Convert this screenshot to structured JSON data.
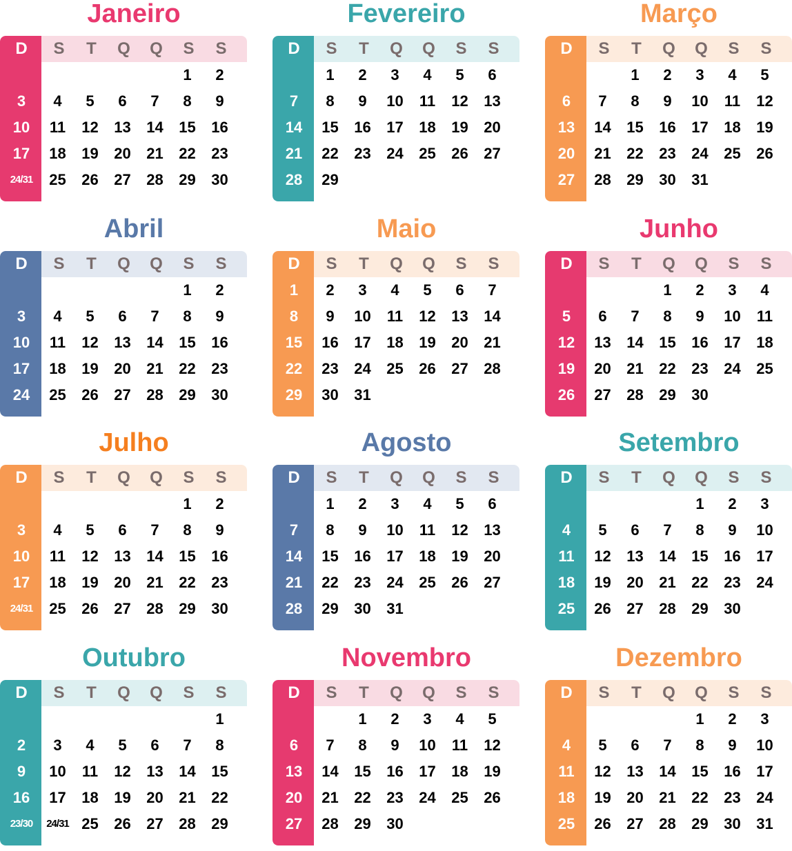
{
  "weekday_headers": [
    "D",
    "S",
    "T",
    "Q",
    "Q",
    "S",
    "S"
  ],
  "months": [
    {
      "name": "Janeiro",
      "theme": "pink",
      "weeks": [
        [
          "",
          "",
          "",
          "",
          "",
          "1",
          "2"
        ],
        [
          "3",
          "4",
          "5",
          "6",
          "7",
          "8",
          "9"
        ],
        [
          "10",
          "11",
          "12",
          "13",
          "14",
          "15",
          "16"
        ],
        [
          "17",
          "18",
          "19",
          "20",
          "21",
          "22",
          "23"
        ],
        [
          "24/31",
          "25",
          "26",
          "27",
          "28",
          "29",
          "30"
        ]
      ]
    },
    {
      "name": "Fevereiro",
      "theme": "teal",
      "weeks": [
        [
          "",
          "1",
          "2",
          "3",
          "4",
          "5",
          "6"
        ],
        [
          "7",
          "8",
          "9",
          "10",
          "11",
          "12",
          "13"
        ],
        [
          "14",
          "15",
          "16",
          "17",
          "18",
          "19",
          "20"
        ],
        [
          "21",
          "22",
          "23",
          "24",
          "25",
          "26",
          "27"
        ],
        [
          "28",
          "29",
          "",
          "",
          "",
          "",
          ""
        ]
      ]
    },
    {
      "name": "Março",
      "theme": "orange",
      "weeks": [
        [
          "",
          "",
          "1",
          "2",
          "3",
          "4",
          "5"
        ],
        [
          "6",
          "7",
          "8",
          "9",
          "10",
          "11",
          "12"
        ],
        [
          "13",
          "14",
          "15",
          "16",
          "17",
          "18",
          "19"
        ],
        [
          "20",
          "21",
          "22",
          "23",
          "24",
          "25",
          "26"
        ],
        [
          "27",
          "28",
          "29",
          "30",
          "31",
          "",
          ""
        ]
      ]
    },
    {
      "name": "Abril",
      "theme": "blue",
      "weeks": [
        [
          "",
          "",
          "",
          "",
          "",
          "1",
          "2"
        ],
        [
          "3",
          "4",
          "5",
          "6",
          "7",
          "8",
          "9"
        ],
        [
          "10",
          "11",
          "12",
          "13",
          "14",
          "15",
          "16"
        ],
        [
          "17",
          "18",
          "19",
          "20",
          "21",
          "22",
          "23"
        ],
        [
          "24",
          "25",
          "26",
          "27",
          "28",
          "29",
          "30"
        ]
      ]
    },
    {
      "name": "Maio",
      "theme": "orange",
      "weeks": [
        [
          "1",
          "2",
          "3",
          "4",
          "5",
          "6",
          "7"
        ],
        [
          "8",
          "9",
          "10",
          "11",
          "12",
          "13",
          "14"
        ],
        [
          "15",
          "16",
          "17",
          "18",
          "19",
          "20",
          "21"
        ],
        [
          "22",
          "23",
          "24",
          "25",
          "26",
          "27",
          "28"
        ],
        [
          "29",
          "30",
          "31",
          "",
          "",
          "",
          ""
        ]
      ]
    },
    {
      "name": "Junho",
      "theme": "pink",
      "weeks": [
        [
          "",
          "",
          "",
          "1",
          "2",
          "3",
          "4"
        ],
        [
          "5",
          "6",
          "7",
          "8",
          "9",
          "10",
          "11"
        ],
        [
          "12",
          "13",
          "14",
          "15",
          "16",
          "17",
          "18"
        ],
        [
          "19",
          "20",
          "21",
          "22",
          "23",
          "24",
          "25"
        ],
        [
          "26",
          "27",
          "28",
          "29",
          "30",
          "",
          ""
        ]
      ]
    },
    {
      "name": "Julho",
      "theme": "orange2",
      "weeks": [
        [
          "",
          "",
          "",
          "",
          "",
          "1",
          "2"
        ],
        [
          "3",
          "4",
          "5",
          "6",
          "7",
          "8",
          "9"
        ],
        [
          "10",
          "11",
          "12",
          "13",
          "14",
          "15",
          "16"
        ],
        [
          "17",
          "18",
          "19",
          "20",
          "21",
          "22",
          "23"
        ],
        [
          "24/31",
          "25",
          "26",
          "27",
          "28",
          "29",
          "30"
        ]
      ]
    },
    {
      "name": "Agosto",
      "theme": "blue",
      "weeks": [
        [
          "",
          "1",
          "2",
          "3",
          "4",
          "5",
          "6"
        ],
        [
          "7",
          "8",
          "9",
          "10",
          "11",
          "12",
          "13"
        ],
        [
          "14",
          "15",
          "16",
          "17",
          "18",
          "19",
          "20"
        ],
        [
          "21",
          "22",
          "23",
          "24",
          "25",
          "26",
          "27"
        ],
        [
          "28",
          "29",
          "30",
          "31",
          "",
          "",
          ""
        ]
      ]
    },
    {
      "name": "Setembro",
      "theme": "teal",
      "weeks": [
        [
          "",
          "",
          "",
          "",
          "1",
          "2",
          "3"
        ],
        [
          "4",
          "5",
          "6",
          "7",
          "8",
          "9",
          "10"
        ],
        [
          "11",
          "12",
          "13",
          "14",
          "15",
          "16",
          "17"
        ],
        [
          "18",
          "19",
          "20",
          "21",
          "22",
          "23",
          "24"
        ],
        [
          "25",
          "26",
          "27",
          "28",
          "29",
          "30",
          ""
        ]
      ]
    },
    {
      "name": "Outubro",
      "theme": "teal",
      "weeks": [
        [
          "",
          "",
          "",
          "",
          "",
          "",
          "1"
        ],
        [
          "2",
          "3",
          "4",
          "5",
          "6",
          "7",
          "8"
        ],
        [
          "9",
          "10",
          "11",
          "12",
          "13",
          "14",
          "15"
        ],
        [
          "16",
          "17",
          "18",
          "19",
          "20",
          "21",
          "22"
        ],
        [
          "23/30",
          "24/31",
          "25",
          "26",
          "27",
          "28",
          "29"
        ]
      ]
    },
    {
      "name": "Novembro",
      "theme": "pink",
      "weeks": [
        [
          "",
          "",
          "1",
          "2",
          "3",
          "4",
          "5"
        ],
        [
          "6",
          "7",
          "8",
          "9",
          "10",
          "11",
          "12"
        ],
        [
          "13",
          "14",
          "15",
          "16",
          "17",
          "18",
          "19"
        ],
        [
          "20",
          "21",
          "22",
          "23",
          "24",
          "25",
          "26"
        ],
        [
          "27",
          "28",
          "29",
          "30",
          "",
          "",
          ""
        ]
      ]
    },
    {
      "name": "Dezembro",
      "theme": "orange",
      "weeks": [
        [
          "",
          "",
          "",
          "",
          "1",
          "2",
          "3"
        ],
        [
          "4",
          "5",
          "6",
          "7",
          "8",
          "9",
          "10"
        ],
        [
          "11",
          "12",
          "13",
          "14",
          "15",
          "16",
          "17"
        ],
        [
          "18",
          "19",
          "20",
          "21",
          "22",
          "23",
          "24"
        ],
        [
          "25",
          "26",
          "27",
          "28",
          "29",
          "30",
          "31"
        ]
      ]
    }
  ],
  "themes": {
    "pink": {
      "title": "#e9396f",
      "side": "#e63a6f",
      "header": "#f9dbe3"
    },
    "teal": {
      "title": "#3aa6aa",
      "side": "#3aa6aa",
      "header": "#ddf0f1"
    },
    "orange": {
      "title": "#f79a52",
      "side": "#f79a52",
      "header": "#fdebdd"
    },
    "orange2": {
      "title": "#f57f1f",
      "side": "#f79a52",
      "header": "#fdebdd"
    },
    "blue": {
      "title": "#5979a8",
      "side": "#5a79a8",
      "header": "#e2e8f1"
    }
  }
}
